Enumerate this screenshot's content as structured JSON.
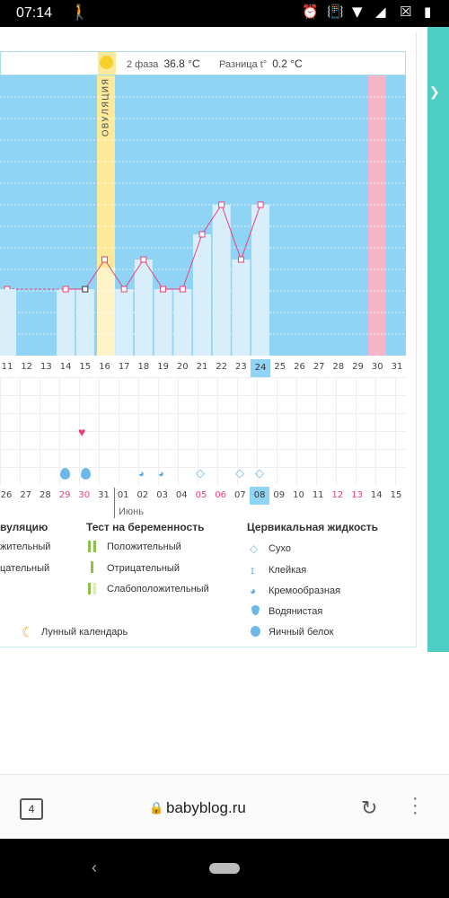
{
  "status_bar": {
    "time": "07:14",
    "icons": [
      "walk-icon",
      "alarm-icon",
      "vibrate-icon",
      "wifi-icon",
      "signal-icon",
      "battery-icon"
    ]
  },
  "cycle_header": {
    "phase": "2 фаза",
    "phase_temp": "36.8 °C",
    "diff_label": "Разница t°",
    "diff_value": "0.2 °C",
    "ovulation_label": "ОВУЛЯЦИЯ",
    "day_numbers": [
      "01",
      "02",
      "03",
      "04",
      "05",
      "06",
      "07",
      "08",
      "09",
      "10",
      "11",
      "12",
      "13",
      "14",
      "15"
    ]
  },
  "chart_data": {
    "type": "line",
    "x": [
      "11",
      "12",
      "13",
      "14",
      "15",
      "16",
      "17",
      "18",
      "19",
      "20",
      "21",
      "22",
      "23",
      "24"
    ],
    "temperature_points": [
      {
        "date": "11",
        "level": 0.31
      },
      {
        "date": "14",
        "level": 0.31
      },
      {
        "date": "15",
        "level": 0.31
      },
      {
        "date": "16",
        "level": 0.39
      },
      {
        "date": "17",
        "level": 0.31
      },
      {
        "date": "18",
        "level": 0.39
      },
      {
        "date": "19",
        "level": 0.31
      },
      {
        "date": "20",
        "level": 0.31
      },
      {
        "date": "21",
        "level": 0.46
      },
      {
        "date": "22",
        "level": 0.54
      },
      {
        "date": "23",
        "level": 0.39
      },
      {
        "date": "24",
        "level": 0.54
      }
    ],
    "highlight_day": "14",
    "current_date": "24",
    "grid": true
  },
  "dates_row": [
    "11",
    "12",
    "13",
    "14",
    "15",
    "16",
    "17",
    "18",
    "19",
    "20",
    "21",
    "22",
    "23",
    "24",
    "25",
    "26",
    "27",
    "28",
    "29",
    "30",
    "31"
  ],
  "dates_row2": [
    {
      "t": "26",
      "pink": false
    },
    {
      "t": "27",
      "pink": false
    },
    {
      "t": "28",
      "pink": false
    },
    {
      "t": "29",
      "pink": true
    },
    {
      "t": "30",
      "pink": true
    },
    {
      "t": "31",
      "pink": false
    },
    {
      "t": "01",
      "pink": false
    },
    {
      "t": "02",
      "pink": false
    },
    {
      "t": "03",
      "pink": false
    },
    {
      "t": "04",
      "pink": false
    },
    {
      "t": "05",
      "pink": true
    },
    {
      "t": "06",
      "pink": true
    },
    {
      "t": "07",
      "pink": false
    },
    {
      "t": "08",
      "pink": false
    },
    {
      "t": "09",
      "pink": false
    },
    {
      "t": "10",
      "pink": false
    },
    {
      "t": "11",
      "pink": false
    },
    {
      "t": "12",
      "pink": true
    },
    {
      "t": "13",
      "pink": true
    },
    {
      "t": "14",
      "pink": false
    },
    {
      "t": "15",
      "pink": false
    }
  ],
  "month_label": "Июнь",
  "legend": {
    "ovulation_title": "вуляцию",
    "ovulation_items": [
      "жительный",
      "цательный"
    ],
    "pregnancy_title": "Тест на беременность",
    "pregnancy_items": [
      "Положительный",
      "Отрицательный",
      "Слабоположительный"
    ],
    "fluid_title": "Цервикальная жидкость",
    "fluid_items": [
      "Сухо",
      "Клейкая",
      "Кремообразная",
      "Водянистая",
      "Яичный белок"
    ],
    "lunar": "Лунный календарь"
  },
  "browser": {
    "tabs_count": "4",
    "url": "babyblog.ru"
  },
  "colors": {
    "sky": "#8fd4f4",
    "bar": "#d9eefb",
    "ovulation": "#fde99a",
    "pink": "#f5b5c8",
    "line": "#e8417a",
    "teal": "#4ecdc4"
  }
}
